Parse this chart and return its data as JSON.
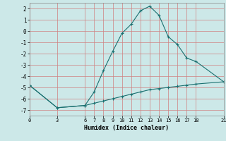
{
  "xlabel": "Humidex (Indice chaleur)",
  "background_color": "#cce8e8",
  "grid_color": "#d08080",
  "line_color": "#1a7070",
  "line1_x": [
    0,
    3,
    6,
    7,
    8,
    9,
    10,
    11,
    12,
    13,
    14,
    15,
    16,
    17,
    18,
    21
  ],
  "line1_y": [
    -4.8,
    -6.8,
    -6.6,
    -5.4,
    -3.5,
    -1.8,
    -0.2,
    0.6,
    1.8,
    2.2,
    1.4,
    -0.5,
    -1.2,
    -2.4,
    -2.7,
    -4.5
  ],
  "line2_x": [
    0,
    3,
    6,
    7,
    8,
    9,
    10,
    11,
    12,
    13,
    14,
    15,
    16,
    17,
    18,
    21
  ],
  "line2_y": [
    -4.8,
    -6.8,
    -6.6,
    -6.4,
    -6.2,
    -6.0,
    -5.8,
    -5.6,
    -5.4,
    -5.2,
    -5.1,
    -5.0,
    -4.9,
    -4.8,
    -4.7,
    -4.5
  ],
  "xticks": [
    0,
    3,
    6,
    7,
    8,
    9,
    10,
    11,
    12,
    13,
    14,
    15,
    16,
    17,
    18,
    21
  ],
  "yticks": [
    -7,
    -6,
    -5,
    -4,
    -3,
    -2,
    -1,
    0,
    1,
    2
  ],
  "xlim": [
    0,
    21
  ],
  "ylim": [
    -7.5,
    2.5
  ],
  "marker": "+"
}
